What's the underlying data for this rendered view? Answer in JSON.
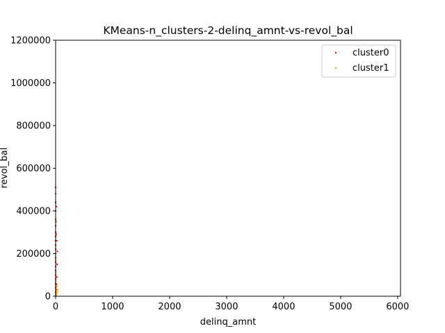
{
  "chart_data": {
    "type": "scatter",
    "title": "KMeans-n_clusters-2-delinq_amnt-vs-revol_bal",
    "xlabel": "delinq_amnt",
    "ylabel": "revol_bal",
    "xlim": [
      0,
      6050
    ],
    "ylim": [
      0,
      1200000
    ],
    "xticks": [
      0,
      1000,
      2000,
      3000,
      4000,
      5000,
      6000
    ],
    "xtick_labels": [
      "0",
      "1000",
      "2000",
      "3000",
      "4000",
      "5000",
      "6000"
    ],
    "yticks": [
      0,
      200000,
      400000,
      600000,
      800000,
      1000000,
      1200000
    ],
    "ytick_labels": [
      "0",
      "200000",
      "400000",
      "600000",
      "800000",
      "1000000",
      "1200000"
    ],
    "grid": false,
    "legend_position": "top-right",
    "series": [
      {
        "name": "cluster0",
        "color": "#ff0000",
        "points": [
          [
            0,
            5000
          ],
          [
            0,
            20000
          ],
          [
            0,
            40000
          ],
          [
            0,
            60000
          ],
          [
            0,
            80000
          ],
          [
            0,
            100000
          ],
          [
            0,
            120000
          ],
          [
            0,
            140000
          ],
          [
            0,
            160000
          ],
          [
            0,
            180000
          ],
          [
            0,
            200000
          ],
          [
            0,
            220000
          ],
          [
            0,
            240000
          ],
          [
            0,
            260000
          ],
          [
            0,
            280000
          ],
          [
            0,
            300000
          ],
          [
            0,
            330000
          ],
          [
            0,
            360000
          ],
          [
            0,
            400000
          ],
          [
            0,
            440000
          ],
          [
            0,
            480000
          ],
          [
            0,
            510000
          ],
          [
            5,
            10000
          ],
          [
            10,
            30000
          ],
          [
            15,
            55000
          ],
          [
            20,
            90000
          ],
          [
            25,
            150000
          ],
          [
            30,
            210000
          ],
          [
            20,
            260000
          ],
          [
            10,
            290000
          ],
          [
            5,
            350000
          ],
          [
            15,
            420000
          ]
        ]
      },
      {
        "name": "cluster1",
        "color": "#ffa500",
        "points": [
          [
            0,
            2000
          ],
          [
            0,
            8000
          ],
          [
            0,
            15000
          ],
          [
            0,
            25000
          ],
          [
            0,
            35000
          ],
          [
            0,
            50000
          ],
          [
            0,
            70000
          ],
          [
            0,
            110000
          ],
          [
            0,
            170000
          ],
          [
            10,
            5000
          ],
          [
            20,
            12000
          ],
          [
            30,
            20000
          ],
          [
            40,
            30000
          ],
          [
            25,
            45000
          ]
        ]
      }
    ]
  }
}
